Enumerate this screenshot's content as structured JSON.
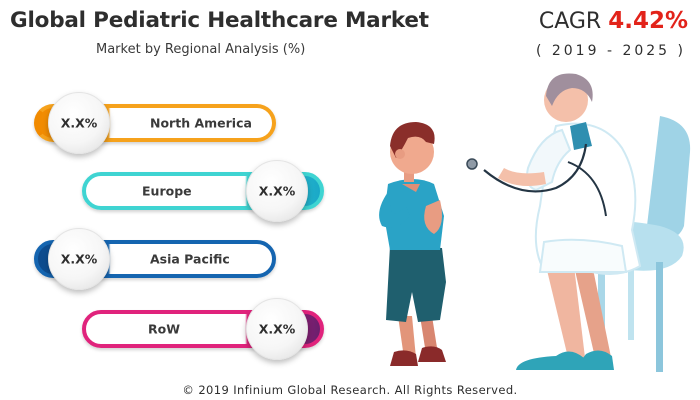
{
  "header": {
    "title": "Global Pediatric Healthcare Market",
    "subtitle": "Market by Regional Analysis (%)"
  },
  "cagr": {
    "label": "CAGR",
    "value": "4.42%",
    "years": "( 2019 - 2025 )"
  },
  "regions": [
    {
      "label": "North America",
      "value": "X.X%",
      "color": "#f6a21c",
      "color_dark": "#f18a00"
    },
    {
      "label": "Europe",
      "value": "X.X%",
      "color": "#3fd4d2",
      "color_dark": "#1aa8c8"
    },
    {
      "label": "Asia Pacific",
      "value": "X.X%",
      "color": "#1565b0",
      "color_dark": "#0d4a8c"
    },
    {
      "label": "RoW",
      "value": "X.X%",
      "color": "#e0237c",
      "color_dark": "#6a1f6e"
    }
  ],
  "footer": "© 2019 Infinium Global Research. All Rights Reserved.",
  "illustration": {
    "icon": "doctor-examining-child-illustration"
  }
}
